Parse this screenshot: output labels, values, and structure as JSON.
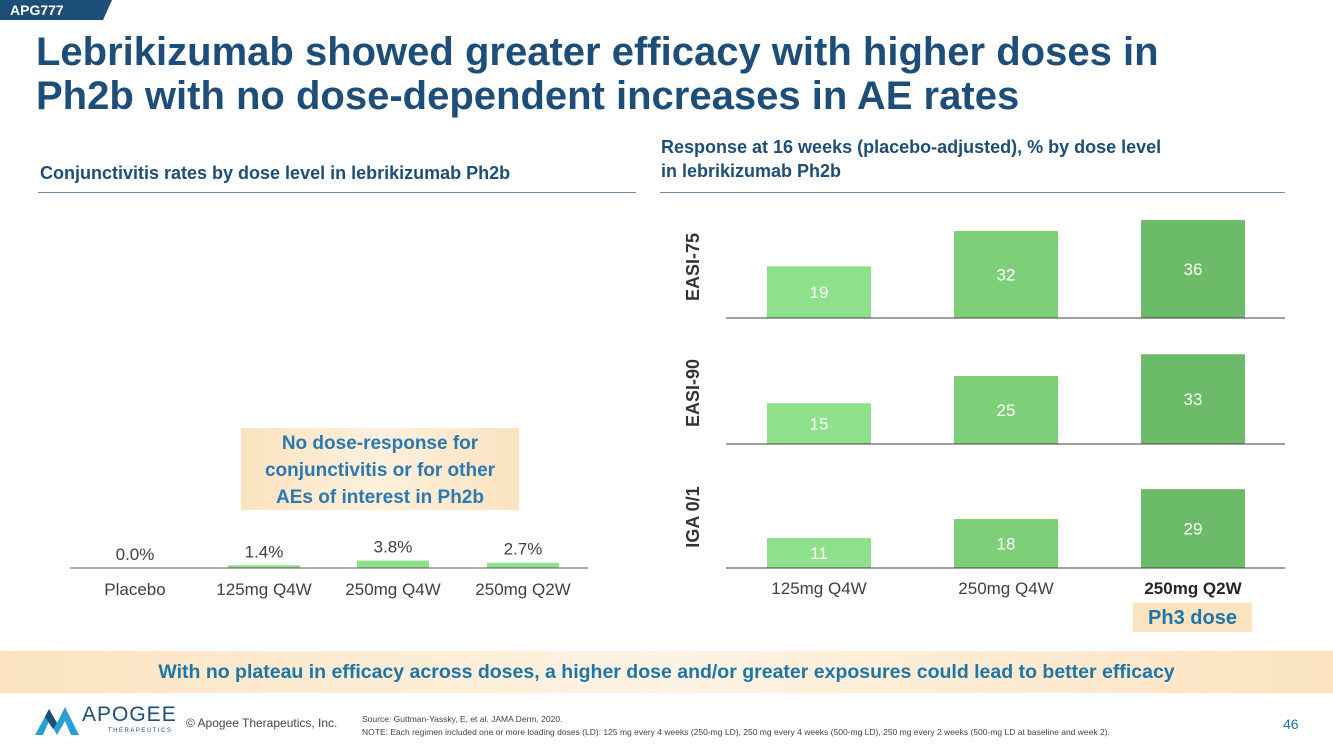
{
  "header": {
    "tag": "APG777",
    "title_line1": "Lebrikizumab showed greater efficacy with higher doses in",
    "title_line2": "Ph2b with no dose-dependent increases in AE rates"
  },
  "left_panel": {
    "subtitle": "Conjunctivitis rates by dose level in lebrikizumab Ph2b",
    "callout_lines": [
      "No dose-response for",
      "conjunctivitis or for other",
      "AEs of interest in Ph2b"
    ]
  },
  "right_panel": {
    "subtitle_line1": "Response at 16 weeks (placebo-adjusted), % by dose level",
    "subtitle_line2": "in lebrikizumab Ph2b",
    "ph3_label": "Ph3 dose"
  },
  "banner": "With no plateau in efficacy across doses, a higher dose and/or greater exposures could lead to better efficacy",
  "footer": {
    "logo_word": "APOGEE",
    "logo_sub": "THERAPEUTICS",
    "copyright": "© Apogee Therapeutics, Inc.",
    "source": "Source: Guttman-Yassky, E, et al. JAMA Derm, 2020.",
    "note": "NOTE: Each regimen included one or more loading doses (LD): 125 mg every 4 weeks (250-mg LD), 250 mg every 4 weeks (500-mg LD), 250 mg every 2 weeks (500-mg LD at baseline and week 2).",
    "page": "46"
  },
  "colors": {
    "brand": "#1d4e79",
    "accent": "#1e75a9",
    "bar_light": "#8ee08a",
    "bar_mid": "#7dcf78",
    "bar_dark": "#6cbb68",
    "callout_bg": "#fbe3bf"
  },
  "chart_data": [
    {
      "type": "bar",
      "categories": [
        "Placebo",
        "125mg Q4W",
        "250mg Q4W",
        "250mg Q2W"
      ],
      "values": [
        0.0,
        1.4,
        3.8,
        2.7
      ],
      "labels": [
        "0.0%",
        "1.4%",
        "3.8%",
        "2.7%"
      ],
      "title": "Conjunctivitis rates by dose level in lebrikizumab Ph2b",
      "ylim": [
        0,
        35
      ]
    },
    {
      "type": "bar",
      "title": "Response at 16 weeks (placebo-adjusted), % by dose level in lebrikizumab Ph2b",
      "categories": [
        "125mg Q4W",
        "250mg Q4W",
        "250mg Q2W"
      ],
      "highlight_category": "250mg Q2W",
      "series": [
        {
          "name": "EASI-75",
          "values": [
            19,
            32,
            36
          ]
        },
        {
          "name": "EASI-90",
          "values": [
            15,
            25,
            33
          ]
        },
        {
          "name": "IGA 0/1",
          "values": [
            11,
            18,
            29
          ]
        }
      ],
      "ylim": [
        0,
        40
      ]
    }
  ]
}
